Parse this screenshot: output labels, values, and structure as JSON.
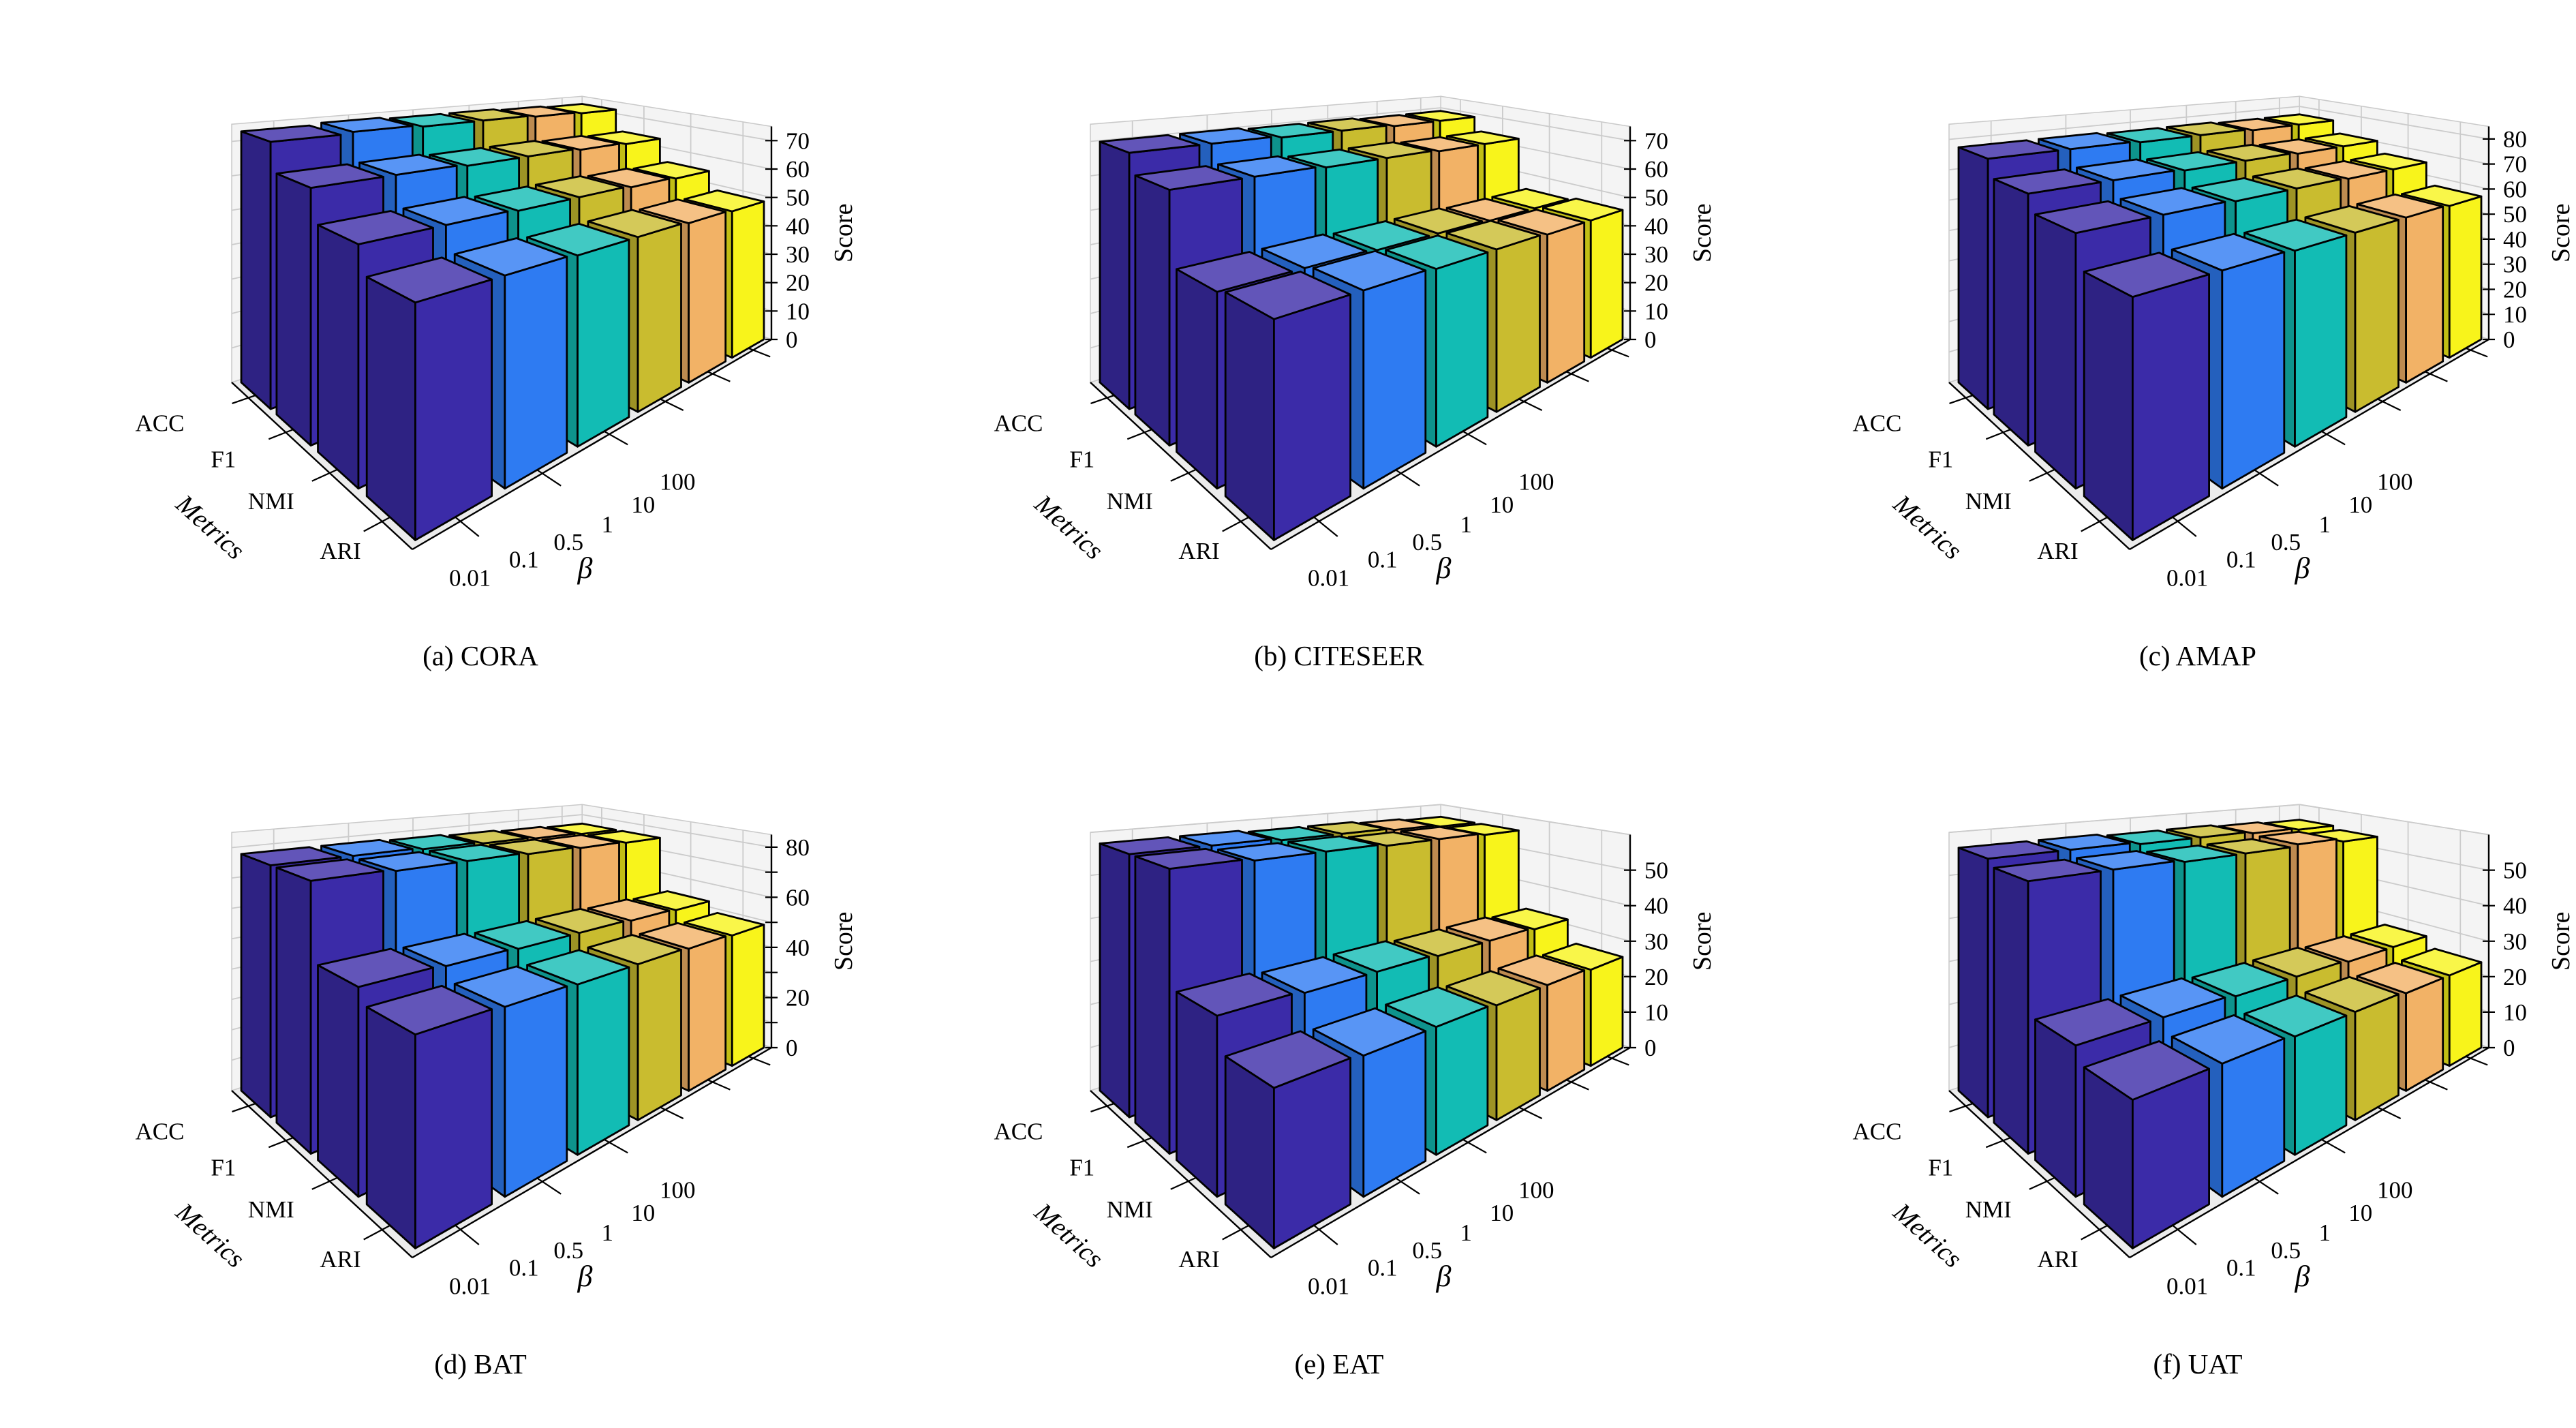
{
  "figure": {
    "background": "#ffffff",
    "bar_palette": [
      "#3B2BA8",
      "#2E7BF2",
      "#12BCB4",
      "#C9BC2F",
      "#F2B266",
      "#F8F41B"
    ],
    "pane_color": "#f4f4f4",
    "floor_color": "#ececec",
    "wall_grid_color": "#cbcbcb",
    "floor_grid_color": "#ffffff",
    "axis_line_color": "#000000",
    "bar_outline_color": "#000000",
    "metrics_axis_label": "Metrics",
    "beta_axis_label": "β",
    "score_axis_label": "Score",
    "metrics": [
      "ACC",
      "F1",
      "NMI",
      "ARI"
    ],
    "beta_values": [
      "0.01",
      "0.1",
      "0.5",
      "1",
      "10",
      "100"
    ]
  },
  "chart_data": [
    {
      "type": "bar3d",
      "dataset": "CORA",
      "caption": "(a) CORA",
      "xlabel": "β",
      "ylabel": "Metrics",
      "zlabel": "Score",
      "categories": [
        "0.01",
        "0.1",
        "0.5",
        "1",
        "10",
        "100"
      ],
      "metrics": [
        "ACC",
        "F1",
        "NMI",
        "ARI"
      ],
      "series": [
        {
          "name": "ACC",
          "values": [
            73,
            73.5,
            73,
            73,
            72.5,
            72
          ]
        },
        {
          "name": "F1",
          "values": [
            65,
            65,
            64.5,
            64.5,
            64,
            63.5
          ]
        },
        {
          "name": "NMI",
          "values": [
            56.5,
            56.5,
            56,
            56,
            55.5,
            55
          ]
        },
        {
          "name": "ARI",
          "values": [
            50,
            50,
            49.5,
            49.5,
            49,
            48.5
          ]
        }
      ],
      "z_ticks": [
        0,
        10,
        20,
        30,
        40,
        50,
        60,
        70
      ],
      "z_grid_step": 10,
      "z_max": 75
    },
    {
      "type": "bar3d",
      "dataset": "CITESEER",
      "caption": "(b) CITESEER",
      "xlabel": "β",
      "ylabel": "Metrics",
      "zlabel": "Score",
      "categories": [
        "0.01",
        "0.1",
        "0.5",
        "1",
        "10",
        "100"
      ],
      "metrics": [
        "ACC",
        "F1",
        "NMI",
        "ARI"
      ],
      "series": [
        {
          "name": "ACC",
          "values": [
            70,
            70,
            69.5,
            69.5,
            69,
            69
          ]
        },
        {
          "name": "F1",
          "values": [
            64.5,
            64.5,
            64,
            64,
            63.5,
            63.5
          ]
        },
        {
          "name": "NMI",
          "values": [
            45.5,
            45.5,
            45,
            45,
            44.5,
            44.5
          ]
        },
        {
          "name": "ARI",
          "values": [
            46.5,
            46.5,
            46,
            46,
            45.5,
            45.5
          ]
        }
      ],
      "z_ticks": [
        0,
        10,
        20,
        30,
        40,
        50,
        60,
        70
      ],
      "z_grid_step": 10,
      "z_max": 75
    },
    {
      "type": "bar3d",
      "dataset": "AMAP",
      "caption": "(c) AMAP",
      "xlabel": "β",
      "ylabel": "Metrics",
      "zlabel": "Score",
      "categories": [
        "0.01",
        "0.1",
        "0.5",
        "1",
        "10",
        "100"
      ],
      "metrics": [
        "ACC",
        "F1",
        "NMI",
        "ARI"
      ],
      "series": [
        {
          "name": "ACC",
          "values": [
            77.5,
            77.5,
            77,
            77,
            76.5,
            76.5
          ]
        },
        {
          "name": "F1",
          "values": [
            72,
            72,
            71.5,
            71.5,
            71,
            71
          ]
        },
        {
          "name": "NMI",
          "values": [
            67,
            67,
            66.5,
            66.5,
            66,
            66
          ]
        },
        {
          "name": "ARI",
          "values": [
            58,
            58,
            57.5,
            57.5,
            57.5,
            57
          ]
        }
      ],
      "z_ticks": [
        0,
        10,
        20,
        30,
        40,
        50,
        60,
        70,
        80
      ],
      "z_grid_step": 10,
      "z_max": 85
    },
    {
      "type": "bar3d",
      "dataset": "BAT",
      "caption": "(d) BAT",
      "xlabel": "β",
      "ylabel": "Metrics",
      "zlabel": "Score",
      "categories": [
        "0.01",
        "0.1",
        "0.5",
        "1",
        "10",
        "100"
      ],
      "metrics": [
        "ACC",
        "F1",
        "NMI",
        "ARI"
      ],
      "series": [
        {
          "name": "ACC",
          "values": [
            78,
            78,
            77.5,
            77,
            76.5,
            76
          ]
        },
        {
          "name": "F1",
          "values": [
            78,
            77.5,
            77.5,
            77,
            76.5,
            76
          ]
        },
        {
          "name": "NMI",
          "values": [
            55,
            54.5,
            54,
            54,
            53.5,
            53
          ]
        },
        {
          "name": "ARI",
          "values": [
            51,
            50.5,
            50,
            50,
            49.5,
            49
          ]
        }
      ],
      "z_ticks": [
        0,
        20,
        40,
        60,
        80
      ],
      "z_grid_step": 10,
      "z_max": 85
    },
    {
      "type": "bar3d",
      "dataset": "EAT",
      "caption": "(e) EAT",
      "xlabel": "β",
      "ylabel": "Metrics",
      "zlabel": "Score",
      "categories": [
        "0.01",
        "0.1",
        "0.5",
        "1",
        "10",
        "100"
      ],
      "metrics": [
        "ACC",
        "F1",
        "NMI",
        "ARI"
      ],
      "series": [
        {
          "name": "ACC",
          "values": [
            57.5,
            57.5,
            57,
            57,
            56.5,
            56
          ]
        },
        {
          "name": "F1",
          "values": [
            57.5,
            57,
            57,
            56.5,
            56.5,
            56
          ]
        },
        {
          "name": "NMI",
          "values": [
            33.5,
            33,
            33,
            32.5,
            32.5,
            32
          ]
        },
        {
          "name": "ARI",
          "values": [
            27,
            26.5,
            26.5,
            26,
            26,
            25.5
          ]
        }
      ],
      "z_ticks": [
        0,
        10,
        20,
        30,
        40,
        50
      ],
      "z_grid_step": 10,
      "z_max": 60
    },
    {
      "type": "bar3d",
      "dataset": "UAT",
      "caption": "(f) UAT",
      "xlabel": "β",
      "ylabel": "Metrics",
      "zlabel": "Score",
      "categories": [
        "0.01",
        "0.1",
        "0.5",
        "1",
        "10",
        "100"
      ],
      "metrics": [
        "ACC",
        "F1",
        "NMI",
        "ARI"
      ],
      "series": [
        {
          "name": "ACC",
          "values": [
            56.5,
            56.5,
            56,
            56,
            55.5,
            55
          ]
        },
        {
          "name": "F1",
          "values": [
            55,
            55,
            54.5,
            54.5,
            55,
            54
          ]
        },
        {
          "name": "NMI",
          "values": [
            28,
            28,
            27.5,
            27.5,
            27,
            27
          ]
        },
        {
          "name": "ARI",
          "values": [
            25,
            25,
            24.5,
            24.5,
            24,
            24
          ]
        }
      ],
      "z_ticks": [
        0,
        10,
        20,
        30,
        40,
        50
      ],
      "z_grid_step": 10,
      "z_max": 60
    }
  ]
}
